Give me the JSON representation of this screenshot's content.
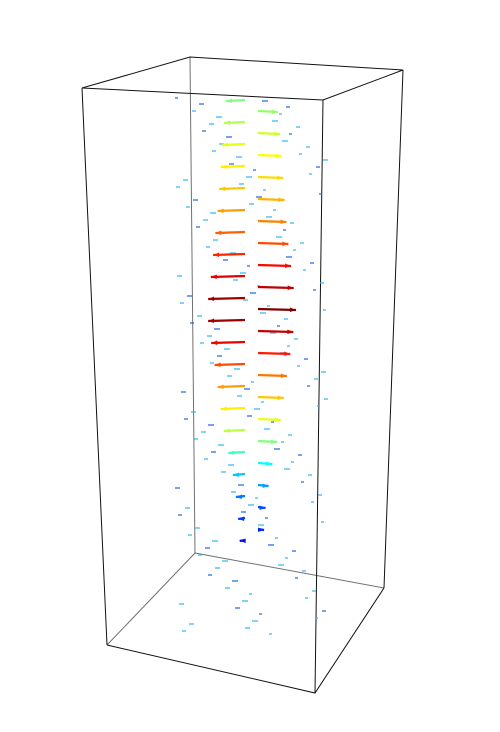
{
  "chart_data": {
    "type": "quiver",
    "colormap": "jet",
    "values": [
      0.5,
      0.52,
      0.55,
      0.58,
      0.6,
      0.62,
      0.64,
      0.66,
      0.68,
      0.7,
      0.72,
      0.75,
      0.78,
      0.8,
      0.84,
      0.87,
      0.9,
      0.94,
      0.97,
      1.0,
      0.97,
      0.93,
      0.89,
      0.85,
      0.8,
      0.76,
      0.72,
      0.68,
      0.64,
      0.6,
      0.56,
      0.5,
      0.44,
      0.38,
      0.32,
      0.28,
      0.24,
      0.2,
      0.18,
      0.16,
      0.14
    ]
  }
}
